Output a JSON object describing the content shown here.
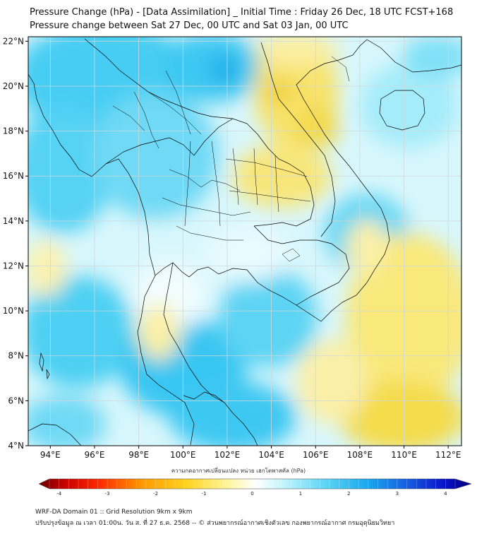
{
  "header": {
    "title_line1": "Pressure Change (hPa) - [Data Assimilation] _ Initial Time : Friday 26 Dec, 18 UTC FCST+168",
    "title_line2": "Pressure change between Sat 27 Dec, 00 UTC and Sat 03 Jan, 00 UTC"
  },
  "map": {
    "lat_labels": [
      "22°N",
      "20°N",
      "18°N",
      "16°N",
      "14°N",
      "12°N",
      "10°N",
      "8°N",
      "6°N",
      "4°N"
    ],
    "lon_labels": [
      "94°E",
      "96°E",
      "98°E",
      "100°E",
      "102°E",
      "104°E",
      "106°E",
      "108°E",
      "110°E",
      "112°E"
    ],
    "lat_range": [
      4,
      22.2
    ],
    "lon_range": [
      93,
      112.6
    ],
    "field_colors": {
      "positive_light": "#b8f0fb",
      "positive": "#5fd6f5",
      "positive_strong": "#19b6ef",
      "neutral": "#eefcfe",
      "negative_light": "#fbf3b3",
      "negative": "#f8e86e",
      "negative_strong": "#f0d43c"
    }
  },
  "colorbar": {
    "title": "ความกดอากาศเปลี่ยนแปลง หน่วย เฮกโตพาสคัล (hPa)",
    "ticks": [
      "-4",
      "-3",
      "-2",
      "-1",
      "0",
      "1",
      "2",
      "3",
      "4"
    ],
    "range": [
      -4.2,
      4.2
    ]
  },
  "footer": {
    "line1": "WRF-DA Domain 01 :: Grid Resolution 9km x 9km",
    "line2": "ปรับปรุงข้อมูล ณ เวลา 01:00น. วัน ส. ที่ 27 ธ.ค. 2568 -- © ส่วนพยากรณ์อากาศเชิงตัวเลข กองพยากรณ์อากาศ กรมอุตุนิยมวิทยา"
  }
}
